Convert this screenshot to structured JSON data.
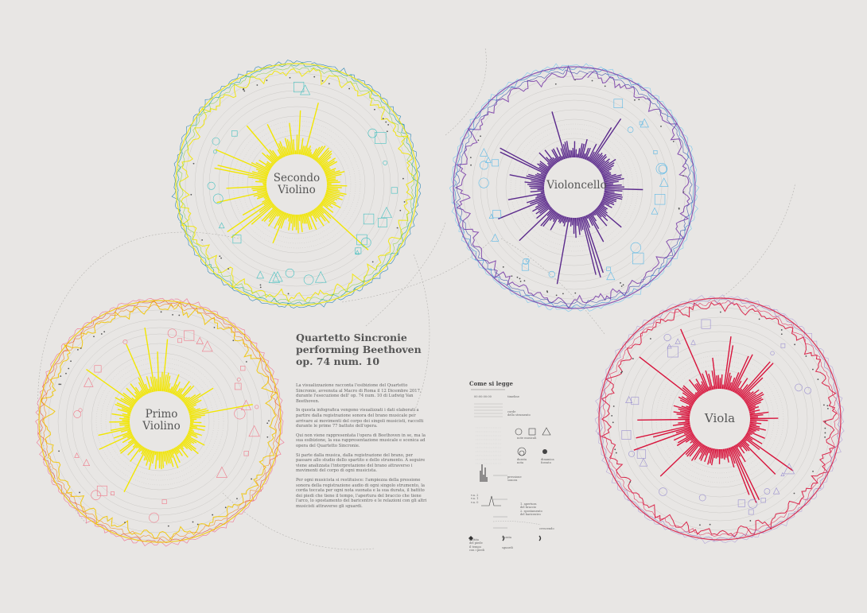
{
  "title": "Quartetto Sincronie\nperforming Beethoven\nop. 74 num. 10",
  "paragraphs": [
    "La visualizzazione racconta l'esibizione del Quartetto Sincronie, avvenuta al Macro di Roma il 12 Dicembre 2017, durante l'esecuzione dell' op. 74 num. 10 di Ludwig Van Beethoven.",
    "In questa infografica vengono visualizzati i dati elaborati a partire dalla registrazione sonora del brano musicale per arrivare ai movimenti del corpo dei singoli musicisti, raccolti durante le prime 77 battute dell'opera.",
    "Qui non viene rappresentata l'opera di Beethoven in se, ma la sua esibizione, la sua rappresentazione musicale e scenica ad opera del Quartetto Sincronie.",
    "Si parte dalla musica, dalla registrazione del brano, per passare allo studio dello spartito e dello strumento. A seguire viene analizzata l'interpretazione del brano attraverso i movimenti del corpo di ogni musicista.",
    "Per ogni musicista si restituisce: l'ampiezza della pressione sonora della registrazione audio di ogni singolo strumento, la corda toccata per ogni nota suonata e la sua durata, il battito dei piedi che tiene il tempo, l'apertura del braccio che tiene l'arco, lo spostamento del baricentro e le relazioni con gli altri musicisti attraverso gli sguardi."
  ],
  "instruments": [
    {
      "label": "Secondo\nVioli­no",
      "bar_color": "#f2e600",
      "outer_colors": [
        "#f2e600",
        "#8fd14f",
        "#1fa89a",
        "#1f7fb0"
      ],
      "note_color": "#45c0c0"
    },
    {
      "label": "Violoncello",
      "bar_color": "#5b2a8c",
      "outer_colors": [
        "#7b3fa8",
        "#3c4ea8",
        "#2e8ad6",
        "#6fc4ee"
      ],
      "note_color": "#5ab8e6"
    },
    {
      "label": "Primo\nVioli­no",
      "bar_color": "#f2e600",
      "outer_colors": [
        "#f2c500",
        "#f08a20",
        "#e8503a",
        "#f06a8a"
      ],
      "note_color": "#f07a8a"
    },
    {
      "label": "Viola",
      "bar_color": "#d8143c",
      "outer_colors": [
        "#d8143c",
        "#e0305a",
        "#9a7fc8",
        "#b0a0d8"
      ],
      "note_color": "#9a90d0"
    }
  ],
  "legend": {
    "title": "Come si legge",
    "timeline_label": "timeline",
    "timeline_value": "00:00:00:00",
    "strings_label": "corde\ndello strumento",
    "notes_label": "note musicali",
    "duration_label": "durata\nnota",
    "dynamics_label": "dinamica\nforzato",
    "pressure_label": "pressione\nsonora",
    "axes_label": "v.a. 2\nv.a. 1\nv.a. 0",
    "movement_label": "1. apertura\ndel braccio\n2. spostamento\ndel baricentro",
    "foot_label": "battito\ndel piede\nil tempo\ncon i piedi",
    "duration2_label": "durata",
    "gaze_label": "sguardi",
    "crescendo_label": "crescendo"
  }
}
